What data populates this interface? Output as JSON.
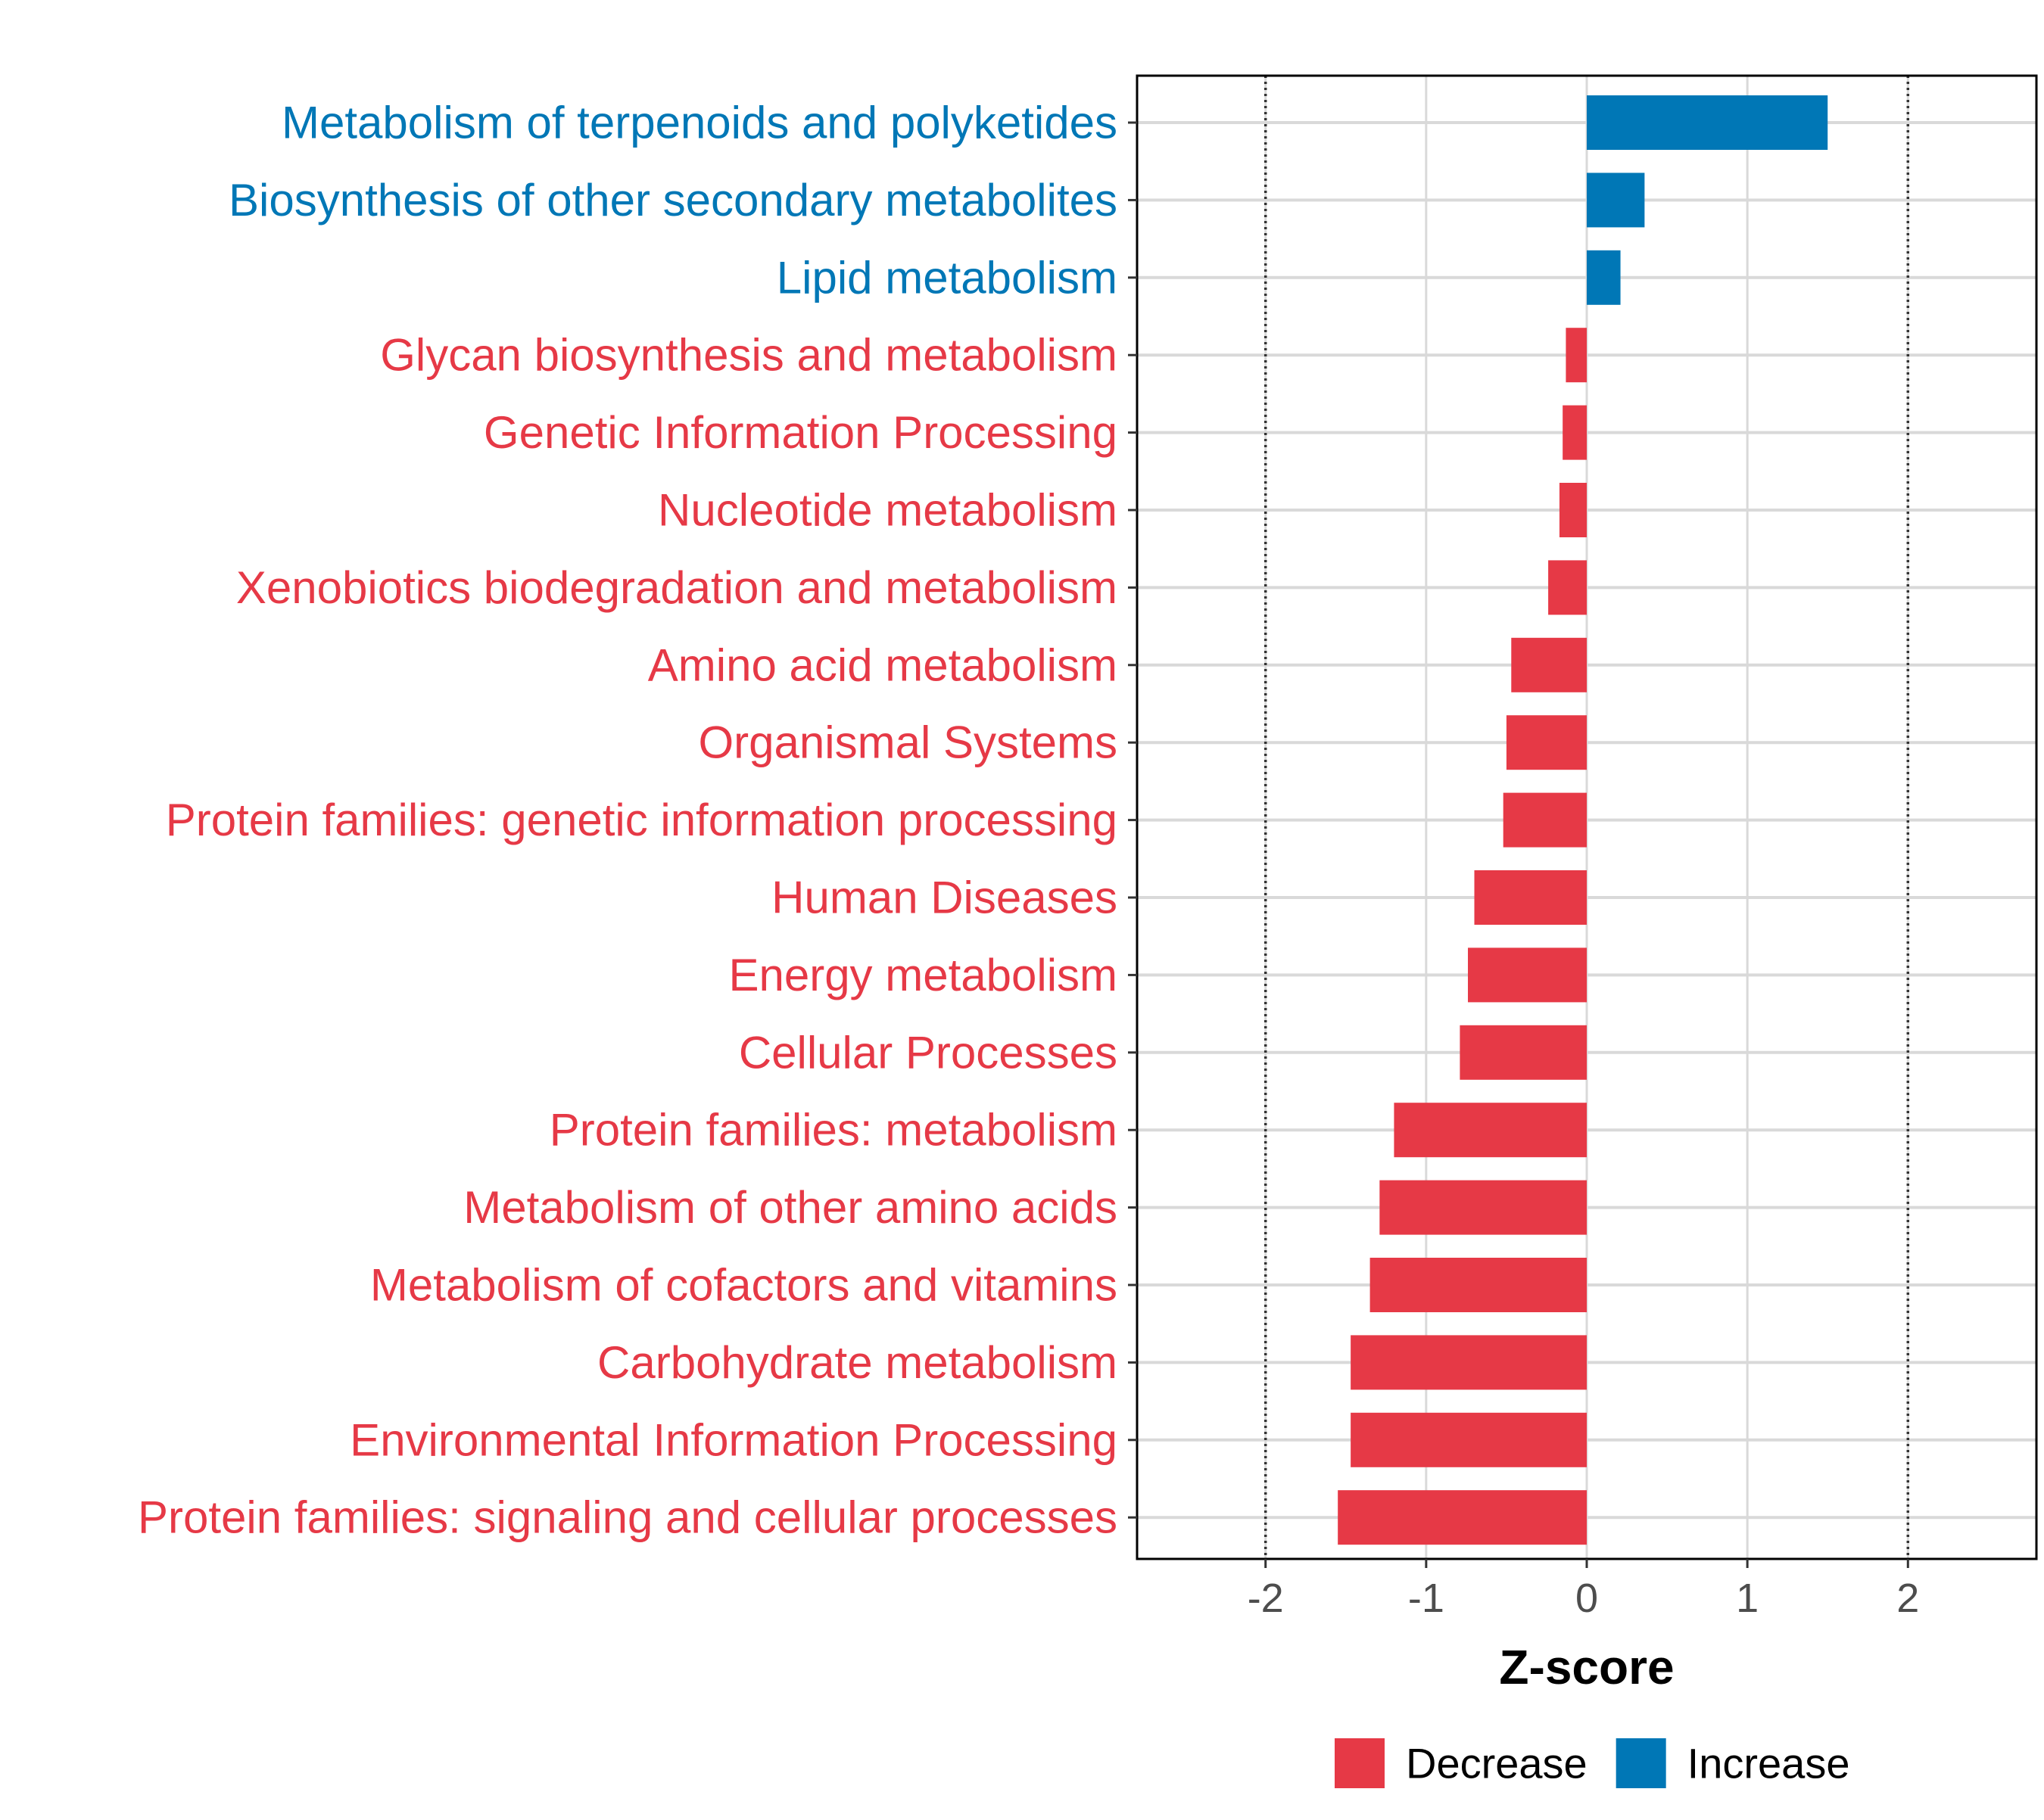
{
  "chart_data": {
    "type": "bar",
    "orientation": "horizontal",
    "title": "",
    "xlabel": "Z-score",
    "ylabel": "",
    "xlim": [
      -2.8,
      2.8
    ],
    "xticks": [
      -2,
      -1,
      0,
      1,
      2
    ],
    "xtick_labels": [
      "-2",
      "-1",
      "0",
      "1",
      "2"
    ],
    "reference_lines": [
      -2,
      2
    ],
    "grid": true,
    "legend_position": "bottom",
    "colors": {
      "Decrease": "#E63946",
      "Increase": "#0077B6"
    },
    "legend": [
      {
        "label": "Decrease",
        "color": "#E63946"
      },
      {
        "label": "Increase",
        "color": "#0077B6"
      }
    ],
    "categories": [
      "Metabolism of terpenoids and polyketides",
      "Biosynthesis of other secondary metabolites",
      "Lipid metabolism",
      "Glycan biosynthesis and metabolism",
      "Genetic Information Processing",
      "Nucleotide metabolism",
      "Xenobiotics biodegradation and metabolism",
      "Amino acid metabolism",
      "Organismal Systems",
      "Protein families: genetic information processing",
      "Human Diseases",
      "Energy metabolism",
      "Cellular Processes",
      "Protein families: metabolism",
      "Metabolism of other amino acids",
      "Metabolism of cofactors and vitamins",
      "Carbohydrate metabolism",
      "Environmental Information Processing",
      "Protein families: signaling and cellular processes"
    ],
    "values": [
      1.5,
      0.36,
      0.21,
      -0.13,
      -0.15,
      -0.17,
      -0.24,
      -0.47,
      -0.5,
      -0.52,
      -0.7,
      -0.74,
      -0.79,
      -1.2,
      -1.29,
      -1.35,
      -1.47,
      -1.47,
      -1.55
    ],
    "groups": [
      "Increase",
      "Increase",
      "Increase",
      "Decrease",
      "Decrease",
      "Decrease",
      "Decrease",
      "Decrease",
      "Decrease",
      "Decrease",
      "Decrease",
      "Decrease",
      "Decrease",
      "Decrease",
      "Decrease",
      "Decrease",
      "Decrease",
      "Decrease",
      "Decrease"
    ]
  }
}
